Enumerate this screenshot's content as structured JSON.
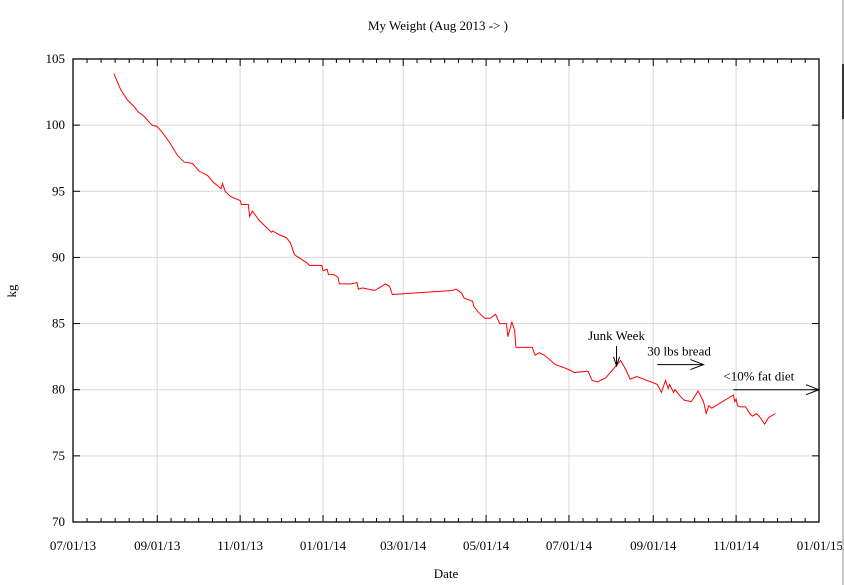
{
  "chart_data": {
    "type": "line",
    "title": "My Weight (Aug 2013 -> )",
    "xlabel": "Date",
    "ylabel": "kg",
    "xlim": [
      "07/01/13",
      "01/01/15"
    ],
    "ylim": [
      70,
      105
    ],
    "grid": true,
    "x_ticks": [
      "07/01/13",
      "09/01/13",
      "11/01/13",
      "01/01/14",
      "03/01/14",
      "05/01/14",
      "07/01/14",
      "09/01/14",
      "11/01/14",
      "01/01/15"
    ],
    "y_ticks": [
      70,
      75,
      80,
      85,
      90,
      95,
      100,
      105
    ],
    "line_color": "#ff0000",
    "series": [
      {
        "name": "weight",
        "x": [
          "07/31/13",
          "08/05/13",
          "08/10/13",
          "08/15/13",
          "08/18/13",
          "08/22/13",
          "08/28/13",
          "09/01/13",
          "09/05/13",
          "09/10/13",
          "09/16/13",
          "09/21/13",
          "09/27/13",
          "10/02/13",
          "10/08/13",
          "10/12/13",
          "10/18/13",
          "10/19/13",
          "10/21/13",
          "10/25/13",
          "11/01/13",
          "11/02/13",
          "11/07/13",
          "11/08/13",
          "11/10/13",
          "11/15/13",
          "11/20/13",
          "11/22/13",
          "11/24/13",
          "11/25/13",
          "11/30/13",
          "12/05/13",
          "12/08/13",
          "12/11/13",
          "12/14/13",
          "12/20/13",
          "12/22/13",
          "12/31/13",
          "01/01/14",
          "01/04/14",
          "01/05/14",
          "01/09/14",
          "01/12/14",
          "01/13/14",
          "01/22/14",
          "01/26/14",
          "01/27/14",
          "01/30/14",
          "02/08/14",
          "02/16/14",
          "02/19/14",
          "02/21/14",
          "04/06/14",
          "04/09/14",
          "04/13/14",
          "04/15/14",
          "04/21/14",
          "04/22/14",
          "04/25/14",
          "04/30/14",
          "05/04/14",
          "05/08/14",
          "05/11/14",
          "05/14/14",
          "05/16/14",
          "05/17/14",
          "05/20/14",
          "05/22/14",
          "05/23/14",
          "06/01/14",
          "06/04/14",
          "06/06/14",
          "06/09/14",
          "06/13/14",
          "06/21/14",
          "06/29/14",
          "07/05/14",
          "07/15/14",
          "07/18/14",
          "07/22/14",
          "07/28/14",
          "08/08/14",
          "08/12/14",
          "08/15/14",
          "08/20/14",
          "09/04/14",
          "09/07/14",
          "09/10/14",
          "09/12/14",
          "09/13/14",
          "09/16/14",
          "09/17/14",
          "09/21/14",
          "09/24/14",
          "09/29/14",
          "10/04/14",
          "10/08/14",
          "10/10/14",
          "10/12/14",
          "10/14/14",
          "10/30/14",
          "10/31/14",
          "11/01/14",
          "11/02/14",
          "11/04/14",
          "11/08/14",
          "11/11/14",
          "11/13/14",
          "11/16/14",
          "11/18/14",
          "11/20/14",
          "11/22/14",
          "11/25/14",
          "11/30/14"
        ],
        "y": [
          103.9,
          102.7,
          101.9,
          101.4,
          101.0,
          100.7,
          100.0,
          99.9,
          99.4,
          98.7,
          97.7,
          97.2,
          97.1,
          96.5,
          96.2,
          95.7,
          95.2,
          95.6,
          95.0,
          94.6,
          94.3,
          94.0,
          94.0,
          93.1,
          93.5,
          92.8,
          92.3,
          92.1,
          91.9,
          92.0,
          91.7,
          91.5,
          91.1,
          90.2,
          90.0,
          89.6,
          89.4,
          89.4,
          89.0,
          89.1,
          88.7,
          88.7,
          88.5,
          88.0,
          88.0,
          88.1,
          87.6,
          87.7,
          87.5,
          88.0,
          87.8,
          87.2,
          87.5,
          87.6,
          87.3,
          86.9,
          86.7,
          86.3,
          85.9,
          85.4,
          85.4,
          85.7,
          85.0,
          85.0,
          85.0,
          84.0,
          85.1,
          84.5,
          83.2,
          83.2,
          83.2,
          82.6,
          82.8,
          82.6,
          81.9,
          81.6,
          81.3,
          81.4,
          80.7,
          80.6,
          80.9,
          82.2,
          81.5,
          80.8,
          81.0,
          80.4,
          79.8,
          80.7,
          80.1,
          80.4,
          79.8,
          80.0,
          79.5,
          79.2,
          79.1,
          79.9,
          79.1,
          78.2,
          78.8,
          78.6,
          79.6,
          79.1,
          79.3,
          78.8,
          78.7,
          78.7,
          78.2,
          78.0,
          78.2,
          78.0,
          77.7,
          77.4,
          77.9,
          78.2
        ]
      }
    ],
    "annotations": [
      {
        "text": "Junk Week",
        "arrow": "down",
        "arrow_x": "08/05/14",
        "arrow_from": 83.3,
        "arrow_to": 81.8
      },
      {
        "text": "30 lbs bread",
        "arrow": "right",
        "arrow_y": 81.9,
        "arrow_from": "09/04/14",
        "arrow_to": "10/08/14"
      },
      {
        "text": "<10% fat diet",
        "arrow": "right",
        "arrow_y": 80.0,
        "arrow_from": "10/30/14",
        "arrow_to": "01/01/15"
      }
    ]
  }
}
